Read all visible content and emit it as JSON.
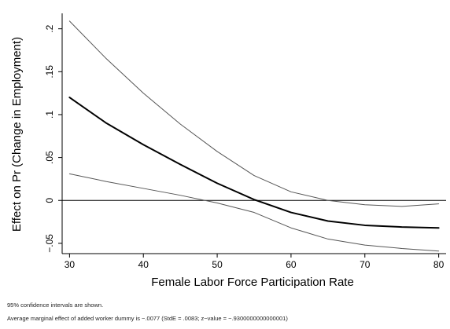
{
  "chart_data": {
    "type": "line",
    "title": "",
    "xlabel": "Female Labor Force Participation Rate",
    "ylabel": "Effect on Pr (Change in Employment)",
    "xlim": [
      29,
      81
    ],
    "ylim": [
      -0.062,
      0.218
    ],
    "x_ticks": [
      {
        "value": 30,
        "label": "30"
      },
      {
        "value": 40,
        "label": "40"
      },
      {
        "value": 50,
        "label": "50"
      },
      {
        "value": 60,
        "label": "60"
      },
      {
        "value": 70,
        "label": "70"
      },
      {
        "value": 80,
        "label": "80"
      }
    ],
    "y_ticks": [
      {
        "value": -0.05,
        "label": "−.05"
      },
      {
        "value": 0,
        "label": "0"
      },
      {
        "value": 0.05,
        "label": ".05"
      },
      {
        "value": 0.1,
        "label": ".1"
      },
      {
        "value": 0.15,
        "label": ".15"
      },
      {
        "value": 0.2,
        "label": ".2"
      }
    ],
    "reference_line_y": 0,
    "grid": false,
    "x": [
      30,
      35,
      40,
      45,
      50,
      55,
      60,
      65,
      70,
      75,
      80
    ],
    "series": [
      {
        "role": "upper-ci",
        "values": [
          0.209,
          0.165,
          0.125,
          0.089,
          0.057,
          0.029,
          0.01,
          0.0,
          -0.005,
          -0.007,
          -0.004
        ],
        "color": "#555555",
        "width": 1
      },
      {
        "role": "estimate",
        "values": [
          0.12,
          0.09,
          0.065,
          0.042,
          0.02,
          0.001,
          -0.014,
          -0.024,
          -0.029,
          -0.031,
          -0.032
        ],
        "color": "#000000",
        "width": 2
      },
      {
        "role": "lower-ci",
        "values": [
          0.031,
          0.022,
          0.014,
          0.006,
          -0.003,
          -0.014,
          -0.032,
          -0.045,
          -0.052,
          -0.056,
          -0.059
        ],
        "color": "#555555",
        "width": 1
      }
    ]
  },
  "notes": {
    "line1": "95% confidence intervals are shown.",
    "line2": "Average marginal effect of added worker dummy is −.0077 (StdE = .0083; z−value = −.9300000000000001)"
  },
  "colors": {
    "background": "#ffffff",
    "axis": "#000000",
    "estimate": "#000000",
    "ci": "#555555"
  }
}
